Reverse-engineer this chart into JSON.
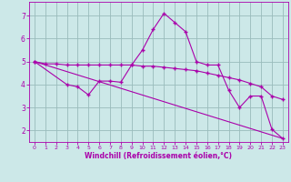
{
  "xlabel": "Windchill (Refroidissement éolien,°C)",
  "background_color": "#cce8e8",
  "line_color": "#aa00aa",
  "grid_color": "#99bbbb",
  "xlim": [
    -0.5,
    23.5
  ],
  "ylim": [
    1.5,
    7.6
  ],
  "yticks": [
    2,
    3,
    4,
    5,
    6,
    7
  ],
  "xticks": [
    0,
    1,
    2,
    3,
    4,
    5,
    6,
    7,
    8,
    9,
    10,
    11,
    12,
    13,
    14,
    15,
    16,
    17,
    18,
    19,
    20,
    21,
    22,
    23
  ],
  "line1_x": [
    0,
    1,
    2,
    3,
    4,
    5,
    6,
    7,
    8,
    9,
    10,
    11,
    12,
    13,
    14,
    15,
    16,
    17,
    18,
    19,
    20,
    21,
    22,
    23
  ],
  "line1_y": [
    5.0,
    4.9,
    4.9,
    4.85,
    4.85,
    4.85,
    4.85,
    4.85,
    4.85,
    4.85,
    4.8,
    4.8,
    4.75,
    4.7,
    4.65,
    4.6,
    4.5,
    4.4,
    4.3,
    4.2,
    4.05,
    3.9,
    3.5,
    3.35
  ],
  "line2_x": [
    0,
    3,
    4,
    5,
    6,
    7,
    8,
    9,
    10,
    11,
    12,
    13,
    14,
    15,
    16,
    17,
    18,
    19,
    20,
    21,
    22,
    23
  ],
  "line2_y": [
    5.0,
    4.0,
    3.9,
    3.55,
    4.15,
    4.15,
    4.1,
    4.85,
    5.5,
    6.4,
    7.1,
    6.7,
    6.3,
    5.0,
    4.85,
    4.85,
    3.75,
    3.0,
    3.5,
    3.5,
    2.05,
    1.65
  ],
  "line3_x": [
    0,
    23
  ],
  "line3_y": [
    5.0,
    1.65
  ]
}
